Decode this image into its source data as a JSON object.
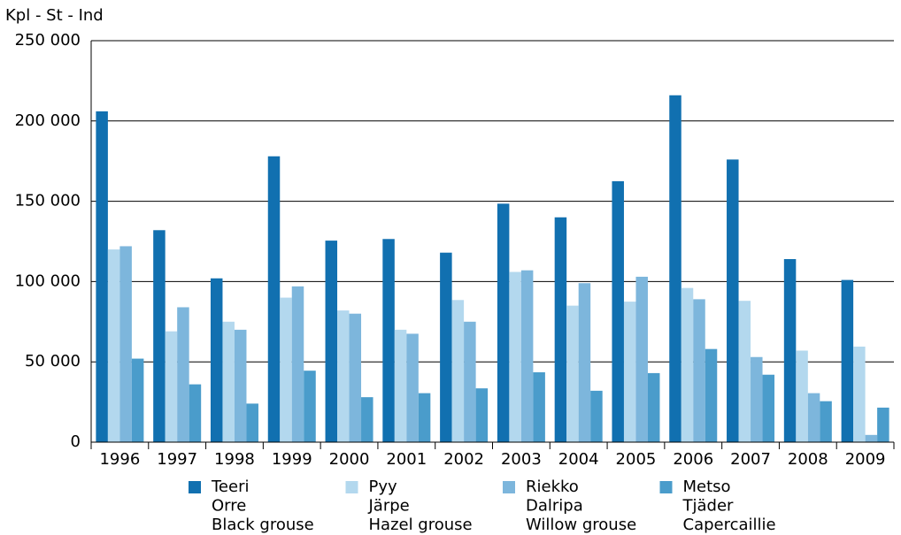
{
  "chart_data": {
    "type": "bar",
    "y_axis_label": "Kpl - St - Ind",
    "categories": [
      "1996",
      "1997",
      "1998",
      "1999",
      "2000",
      "2001",
      "2002",
      "2003",
      "2004",
      "2005",
      "2006",
      "2007",
      "2008",
      "2009"
    ],
    "series": [
      {
        "name": [
          "Teeri",
          "Orre",
          "Black grouse"
        ],
        "color": "#1170b0",
        "values": [
          206000,
          132000,
          102000,
          178000,
          125500,
          126500,
          118000,
          148500,
          140000,
          162500,
          216000,
          176000,
          114000,
          101000
        ]
      },
      {
        "name": [
          "Pyy",
          "Järpe",
          "Hazel grouse"
        ],
        "color": "#b3d8ee",
        "values": [
          120000,
          69000,
          75000,
          90000,
          82000,
          70000,
          88500,
          106000,
          85000,
          87500,
          96000,
          88000,
          57000,
          59500
        ]
      },
      {
        "name": [
          "Riekko",
          "Dalripa",
          "Willow grouse"
        ],
        "color": "#7db6dc",
        "values": [
          122000,
          84000,
          70000,
          97000,
          80000,
          67500,
          75000,
          107000,
          99000,
          103000,
          89000,
          53000,
          30500,
          4500
        ]
      },
      {
        "name": [
          "Metso",
          "Tjäder",
          "Capercaillie"
        ],
        "color": "#4a9ccb",
        "values": [
          52000,
          36000,
          24000,
          44500,
          28000,
          30500,
          33500,
          43500,
          32000,
          43000,
          58000,
          42000,
          25500,
          21500
        ]
      }
    ],
    "ylim": [
      0,
      250000
    ],
    "yticks": [
      0,
      {
        "value": 50000,
        "label": "50 000"
      },
      {
        "value": 100000,
        "label": "100 000"
      },
      {
        "value": 150000,
        "label": "150 000"
      },
      {
        "value": 200000,
        "label": "200 000"
      },
      {
        "value": 250000,
        "label": "250 000"
      }
    ],
    "grid": true
  }
}
